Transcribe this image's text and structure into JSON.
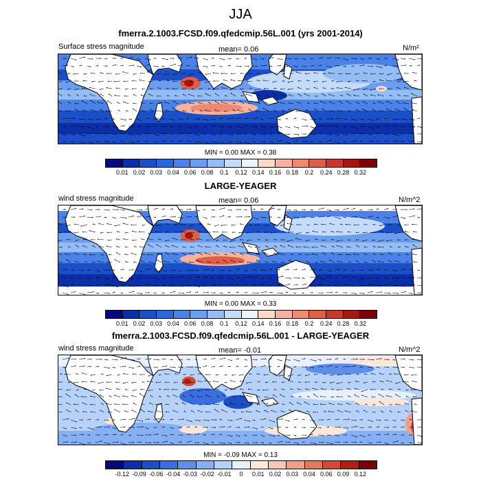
{
  "page_title": "JJA",
  "panels": [
    {
      "title": "fmerra.2.1003.FCSD.f09.qfedcmip.56L.001 (yrs 2001-2014)",
      "left_label": "Surface stress magnitude",
      "mean_label": "mean=   0.06",
      "unit_label": "N/m²",
      "minmax_label": "MIN =   0.00 MAX =   0.38",
      "colorbar_ticks": [
        "0.01",
        "0.02",
        "0.03",
        "0.04",
        "0.06",
        "0.08",
        "0.1",
        "0.12",
        "0.14",
        "0.16",
        "0.18",
        "0.2",
        "0.24",
        "0.28",
        "0.32"
      ]
    },
    {
      "title": "LARGE-YEAGER",
      "left_label": "wind stress magnitude",
      "mean_label": "mean=   0.06",
      "unit_label": "N/m^2",
      "minmax_label": "MIN =   0.00 MAX =   0.33",
      "colorbar_ticks": [
        "0.01",
        "0.02",
        "0.03",
        "0.04",
        "0.06",
        "0.08",
        "0.1",
        "0.12",
        "0.14",
        "0.16",
        "0.18",
        "0.2",
        "0.24",
        "0.28",
        "0.32"
      ]
    },
    {
      "title": "fmerra.2.1003.FCSD.f09.qfedcmip.56L.001 - LARGE-YEAGER",
      "left_label": "wind stress magnitude",
      "mean_label": "mean=   -0.01",
      "unit_label": "N/m^2",
      "minmax_label": "MIN =  -0.09 MAX =   0.13",
      "colorbar_ticks": [
        "-0.12",
        "-0.09",
        "-0.06",
        "-0.04",
        "-0.03",
        "-0.02",
        "-0.01",
        "0",
        "0.01",
        "0.02",
        "0.03",
        "0.04",
        "0.06",
        "0.09",
        "0.12"
      ]
    }
  ],
  "colors": {
    "seq_scale": [
      "#08087a",
      "#0b2fa8",
      "#1a4fc8",
      "#2a66dc",
      "#4a82e8",
      "#6c9ef0",
      "#94bdf6",
      "#c4dcfa",
      "#eef4fd",
      "#fbd8c8",
      "#f4b3a0",
      "#ec8a72",
      "#de5f48",
      "#c8372a",
      "#a8150e",
      "#7a0006"
    ],
    "div_scale": [
      "#08087a",
      "#0b2fa8",
      "#1a4fc8",
      "#3a6ee0",
      "#5d8eec",
      "#86b0f4",
      "#b6d2f9",
      "#e7f0fc",
      "#fde6da",
      "#f8c6b2",
      "#f0a088",
      "#e6775c",
      "#d44a34",
      "#b41e12",
      "#7a0006"
    ]
  },
  "chart_data": {
    "type": "map",
    "season": "JJA",
    "panels": [
      {
        "name": "fmerra.2.1003.FCSD.f09.qfedcmip.56L.001 (yrs 2001-2014)",
        "variable": "Surface stress magnitude",
        "units": "N/m2",
        "mean": 0.06,
        "min": 0.0,
        "max": 0.38,
        "levels": [
          0.01,
          0.02,
          0.03,
          0.04,
          0.06,
          0.08,
          0.1,
          0.12,
          0.14,
          0.16,
          0.18,
          0.2,
          0.24,
          0.28,
          0.32
        ]
      },
      {
        "name": "LARGE-YEAGER",
        "variable": "wind stress magnitude",
        "units": "N/m^2",
        "mean": 0.06,
        "min": 0.0,
        "max": 0.33,
        "levels": [
          0.01,
          0.02,
          0.03,
          0.04,
          0.06,
          0.08,
          0.1,
          0.12,
          0.14,
          0.16,
          0.18,
          0.2,
          0.24,
          0.28,
          0.32
        ]
      },
      {
        "name": "fmerra.2.1003.FCSD.f09.qfedcmip.56L.001 - LARGE-YEAGER",
        "variable": "wind stress magnitude",
        "units": "N/m^2",
        "mean": -0.01,
        "min": -0.09,
        "max": 0.13,
        "levels": [
          -0.12,
          -0.09,
          -0.06,
          -0.04,
          -0.03,
          -0.02,
          -0.01,
          0,
          0.01,
          0.02,
          0.03,
          0.04,
          0.06,
          0.09,
          0.12
        ]
      }
    ]
  }
}
